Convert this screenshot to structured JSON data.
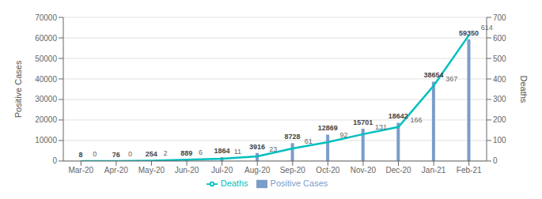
{
  "chart_data": {
    "type": "bar",
    "categories": [
      "Mar-20",
      "Apr-20",
      "May-20",
      "Jun-20",
      "Jul-20",
      "Aug-20",
      "Sep-20",
      "Oct-20",
      "Nov-20",
      "Dec-20",
      "Jan-21",
      "Feb-21"
    ],
    "series": [
      {
        "name": "Positive Cases",
        "type": "bar",
        "color": "#7B9DC8",
        "values": [
          8,
          76,
          254,
          889,
          1864,
          3916,
          8728,
          12869,
          15701,
          18642,
          38654,
          59350
        ]
      },
      {
        "name": "Deaths",
        "type": "line",
        "color": "#00BFBF",
        "axis": "y2",
        "values": [
          0,
          0,
          2,
          6,
          11,
          23,
          61,
          92,
          131,
          166,
          367,
          614
        ]
      }
    ],
    "ylabel": "Positive Cases",
    "y2label": "Deaths",
    "ylim": [
      0,
      70000
    ],
    "yticks": [
      0,
      10000,
      20000,
      30000,
      40000,
      50000,
      60000,
      70000
    ],
    "y2lim": [
      0,
      700
    ],
    "y2ticks": [
      0,
      100,
      200,
      300,
      400,
      500,
      600,
      700
    ],
    "grid": true,
    "legend": "bottom",
    "data_labels": true
  }
}
